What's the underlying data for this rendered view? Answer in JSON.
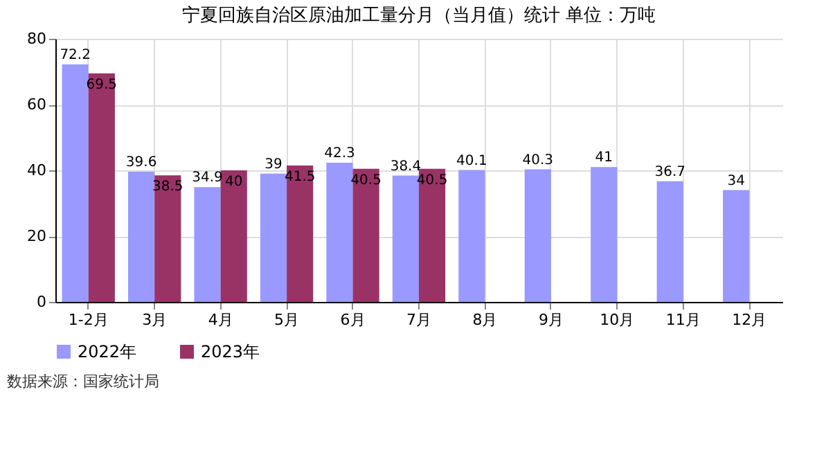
{
  "chart_data": {
    "type": "bar",
    "title": "宁夏回族自治区原油加工量分月（当月值）统计  单位：万吨",
    "categories": [
      "1-2月",
      "3月",
      "4月",
      "5月",
      "6月",
      "7月",
      "8月",
      "9月",
      "10月",
      "11月",
      "12月"
    ],
    "series": [
      {
        "name": "2022年",
        "color": "#9999ff",
        "values": [
          72.2,
          39.6,
          34.9,
          39,
          42.3,
          38.4,
          40.1,
          40.3,
          41,
          36.7,
          34
        ]
      },
      {
        "name": "2023年",
        "color": "#993366",
        "values": [
          69.5,
          38.5,
          40,
          41.5,
          40.5,
          40.5,
          null,
          null,
          null,
          null,
          null
        ]
      }
    ],
    "ylim": [
      0,
      80
    ],
    "yticks": [
      0,
      20,
      40,
      60,
      80
    ],
    "grid": true,
    "legend": "bottom",
    "data_labels": true,
    "annotations": [
      "数据来源：国家统计局"
    ]
  }
}
